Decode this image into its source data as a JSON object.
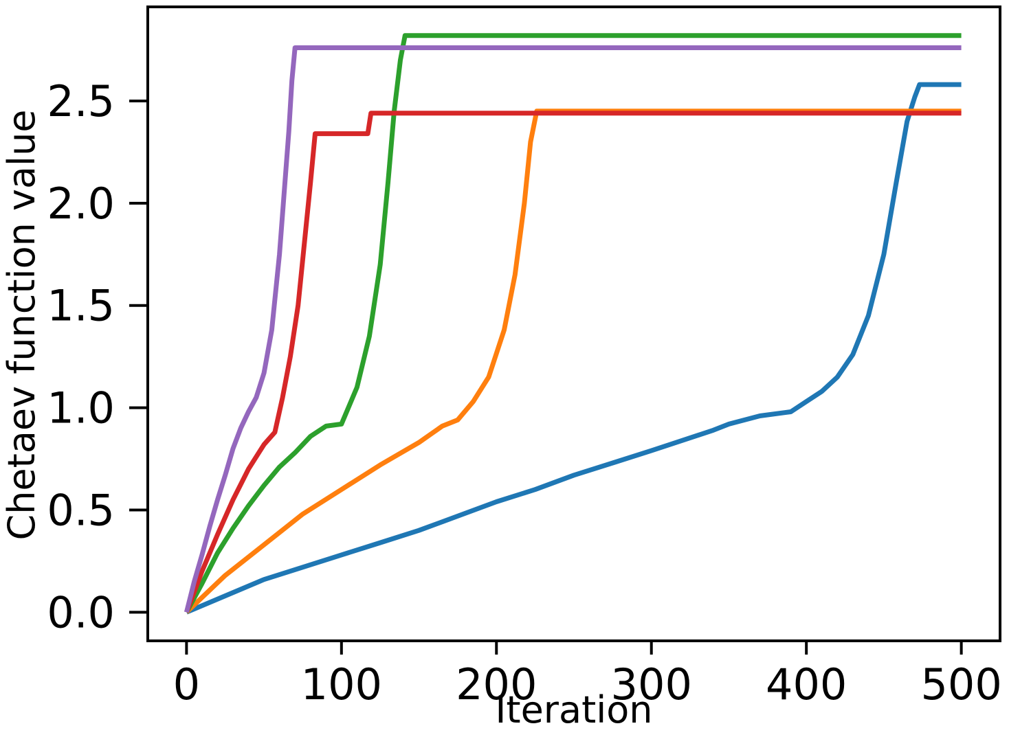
{
  "chart_data": {
    "type": "line",
    "xlabel": "Iteration",
    "ylabel": "Chetaev function value",
    "xlim": [
      -25,
      525
    ],
    "ylim": [
      -0.14,
      2.96
    ],
    "xticks": [
      0,
      100,
      200,
      300,
      400,
      500
    ],
    "xtick_labels": [
      "0",
      "100",
      "200",
      "300",
      "400",
      "500"
    ],
    "yticks": [
      0.0,
      0.5,
      1.0,
      1.5,
      2.0,
      2.5
    ],
    "ytick_labels": [
      "0.0",
      "0.5",
      "1.0",
      "1.5",
      "2.0",
      "2.5"
    ],
    "grid": false,
    "legend": "none",
    "series": [
      {
        "color": "#1f77b4",
        "x": [
          0,
          25,
          50,
          75,
          100,
          125,
          150,
          175,
          200,
          225,
          250,
          275,
          300,
          320,
          340,
          350,
          370,
          390,
          400,
          410,
          420,
          430,
          440,
          450,
          458,
          465,
          470,
          473,
          500
        ],
        "y": [
          0.0,
          0.08,
          0.16,
          0.22,
          0.28,
          0.34,
          0.4,
          0.47,
          0.54,
          0.6,
          0.67,
          0.73,
          0.79,
          0.84,
          0.89,
          0.92,
          0.96,
          0.98,
          1.03,
          1.08,
          1.15,
          1.26,
          1.45,
          1.75,
          2.1,
          2.4,
          2.52,
          2.58,
          2.58
        ]
      },
      {
        "color": "#ff7f0e",
        "x": [
          0,
          25,
          50,
          75,
          100,
          125,
          150,
          165,
          175,
          185,
          195,
          205,
          212,
          218,
          222,
          226,
          228,
          500
        ],
        "y": [
          0.0,
          0.18,
          0.33,
          0.48,
          0.6,
          0.72,
          0.83,
          0.91,
          0.94,
          1.03,
          1.15,
          1.38,
          1.65,
          2.0,
          2.3,
          2.45,
          2.45,
          2.45
        ]
      },
      {
        "color": "#2ca02c",
        "x": [
          0,
          10,
          20,
          30,
          40,
          50,
          60,
          70,
          80,
          90,
          100,
          110,
          118,
          125,
          130,
          134,
          138,
          141,
          500
        ],
        "y": [
          0.0,
          0.14,
          0.29,
          0.41,
          0.52,
          0.62,
          0.71,
          0.78,
          0.86,
          0.91,
          0.92,
          1.1,
          1.35,
          1.7,
          2.1,
          2.45,
          2.7,
          2.82,
          2.82
        ]
      },
      {
        "color": "#d62728",
        "x": [
          0,
          10,
          20,
          30,
          40,
          50,
          57,
          62,
          67,
          72,
          76,
          80,
          83,
          85,
          117,
          119,
          500
        ],
        "y": [
          0.0,
          0.2,
          0.38,
          0.55,
          0.7,
          0.82,
          0.88,
          1.05,
          1.25,
          1.5,
          1.8,
          2.1,
          2.34,
          2.34,
          2.34,
          2.44,
          2.44
        ]
      },
      {
        "color": "#9467bd",
        "x": [
          0,
          5,
          10,
          15,
          20,
          25,
          30,
          35,
          40,
          45,
          50,
          55,
          60,
          63,
          66,
          68,
          70,
          500
        ],
        "y": [
          0.0,
          0.15,
          0.28,
          0.42,
          0.55,
          0.67,
          0.8,
          0.9,
          0.98,
          1.05,
          1.17,
          1.38,
          1.75,
          2.05,
          2.35,
          2.6,
          2.76,
          2.76
        ]
      }
    ]
  }
}
